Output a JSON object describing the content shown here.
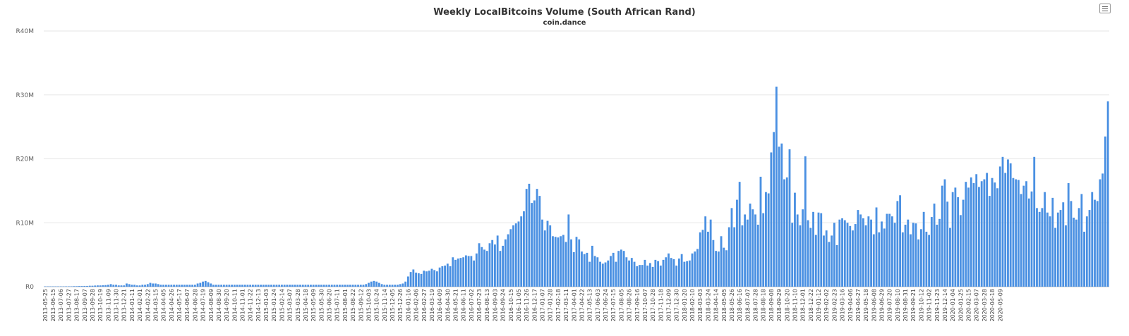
{
  "chart_data": {
    "type": "bar",
    "title": "Weekly LocalBitcoins Volume (South African Rand)",
    "subtitle": "coin.dance",
    "xlabel": "",
    "ylabel": "",
    "ylim": [
      0,
      40000000
    ],
    "y_ticks": [
      {
        "value": 0,
        "label": "R0"
      },
      {
        "value": 10000000,
        "label": "R10M"
      },
      {
        "value": 20000000,
        "label": "R20M"
      },
      {
        "value": 30000000,
        "label": "R30M"
      },
      {
        "value": 40000000,
        "label": "R40M"
      }
    ],
    "x_tick_labels": [
      "2013-05-25",
      "2013-06-15",
      "2013-07-06",
      "2013-07-27",
      "2013-08-17",
      "2013-09-07",
      "2013-09-28",
      "2013-10-19",
      "2013-11-09",
      "2013-11-30",
      "2013-12-21",
      "2014-01-11",
      "2014-02-01",
      "2014-02-22",
      "2014-03-15",
      "2014-04-05",
      "2014-04-26",
      "2014-05-17",
      "2014-06-07",
      "2014-06-28",
      "2014-07-19",
      "2014-08-09",
      "2014-08-30",
      "2014-09-20",
      "2014-10-11",
      "2014-11-01",
      "2014-11-22",
      "2014-12-13",
      "2015-01-03",
      "2015-01-24",
      "2015-02-14",
      "2015-03-07",
      "2015-03-28",
      "2015-04-18",
      "2015-05-09",
      "2015-05-30",
      "2015-06-20",
      "2015-07-11",
      "2015-08-01",
      "2015-08-22",
      "2015-09-12",
      "2015-10-03",
      "2015-10-24",
      "2015-11-14",
      "2015-12-05",
      "2015-12-26",
      "2016-01-16",
      "2016-02-06",
      "2016-02-27",
      "2016-03-19",
      "2016-04-09",
      "2016-04-30",
      "2016-05-21",
      "2016-06-11",
      "2016-07-02",
      "2016-07-23",
      "2016-08-13",
      "2016-09-03",
      "2016-09-24",
      "2016-10-15",
      "2016-11-05",
      "2016-11-26",
      "2016-12-17",
      "2017-01-07",
      "2017-01-28",
      "2017-02-18",
      "2017-03-11",
      "2017-04-01",
      "2017-04-22",
      "2017-05-13",
      "2017-06-03",
      "2017-06-24",
      "2017-07-15",
      "2017-08-05",
      "2017-08-26",
      "2017-09-16",
      "2017-10-07",
      "2017-10-28",
      "2017-11-18",
      "2017-12-09",
      "2017-12-30",
      "2018-01-20",
      "2018-02-10",
      "2018-03-03",
      "2018-03-24",
      "2018-04-14",
      "2018-05-05",
      "2018-05-26",
      "2018-06-16",
      "2018-07-07",
      "2018-07-28",
      "2018-08-18",
      "2018-09-08",
      "2018-09-29",
      "2018-10-20",
      "2018-11-10",
      "2018-12-01",
      "2018-12-22",
      "2019-01-12",
      "2019-02-02",
      "2019-02-23",
      "2019-03-16",
      "2019-04-06",
      "2019-04-27",
      "2019-05-18",
      "2019-06-08",
      "2019-06-29",
      "2019-07-20",
      "2019-08-10",
      "2019-08-31",
      "2019-09-21",
      "2019-10-12",
      "2019-11-02",
      "2019-11-23",
      "2019-12-14",
      "2020-01-04",
      "2020-01-25",
      "2020-02-15",
      "2020-03-07",
      "2020-03-28",
      "2020-04-18",
      "2020-05-09"
    ],
    "x_tick_every": 3,
    "bar_color": "#4a90e2",
    "values_millions": [
      0.05,
      0.05,
      0.05,
      0.05,
      0.05,
      0.05,
      0.05,
      0.05,
      0.06,
      0.06,
      0.06,
      0.08,
      0.08,
      0.1,
      0.1,
      0.12,
      0.12,
      0.15,
      0.15,
      0.18,
      0.2,
      0.2,
      0.22,
      0.25,
      0.3,
      0.4,
      0.3,
      0.3,
      0.2,
      0.2,
      0.2,
      0.5,
      0.4,
      0.3,
      0.3,
      0.2,
      0.2,
      0.3,
      0.3,
      0.4,
      0.6,
      0.5,
      0.5,
      0.4,
      0.3,
      0.3,
      0.3,
      0.3,
      0.3,
      0.3,
      0.3,
      0.3,
      0.3,
      0.3,
      0.3,
      0.3,
      0.3,
      0.3,
      0.5,
      0.6,
      0.8,
      0.9,
      0.7,
      0.5,
      0.3,
      0.3,
      0.3,
      0.3,
      0.3,
      0.3,
      0.3,
      0.3,
      0.3,
      0.3,
      0.3,
      0.3,
      0.3,
      0.3,
      0.3,
      0.3,
      0.3,
      0.3,
      0.3,
      0.3,
      0.3,
      0.3,
      0.3,
      0.3,
      0.3,
      0.3,
      0.3,
      0.3,
      0.3,
      0.3,
      0.3,
      0.3,
      0.3,
      0.3,
      0.3,
      0.3,
      0.3,
      0.3,
      0.3,
      0.3,
      0.3,
      0.3,
      0.3,
      0.3,
      0.3,
      0.3,
      0.3,
      0.3,
      0.3,
      0.3,
      0.3,
      0.3,
      0.3,
      0.3,
      0.3,
      0.3,
      0.3,
      0.3,
      0.4,
      0.6,
      0.8,
      0.9,
      0.8,
      0.6,
      0.4,
      0.3,
      0.3,
      0.3,
      0.3,
      0.3,
      0.3,
      0.4,
      0.5,
      0.8,
      1.6,
      2.3,
      2.7,
      2.2,
      2.1,
      2.0,
      2.5,
      2.4,
      2.5,
      2.8,
      2.6,
      2.4,
      3.0,
      3.2,
      3.3,
      3.6,
      3.2,
      4.6,
      4.2,
      4.4,
      4.5,
      4.6,
      4.9,
      4.8,
      4.8,
      4.1,
      5.2,
      6.8,
      6.2,
      5.8,
      5.6,
      6.8,
      7.3,
      6.6,
      8.0,
      5.6,
      6.4,
      7.4,
      8.2,
      9.0,
      9.6,
      9.9,
      10.2,
      11.0,
      11.8,
      15.3,
      16.1,
      13.1,
      13.5,
      15.3,
      14.2,
      10.5,
      8.8,
      10.3,
      9.6,
      7.9,
      7.8,
      7.7,
      7.9,
      8.1,
      7.0,
      11.3,
      7.4,
      5.4,
      7.8,
      7.4,
      5.5,
      5.1,
      5.3,
      3.9,
      6.4,
      4.8,
      4.6,
      3.9,
      3.6,
      3.8,
      4.1,
      4.8,
      5.3,
      3.9,
      5.6,
      5.8,
      5.6,
      4.6,
      4.1,
      4.5,
      3.9,
      3.2,
      3.4,
      3.4,
      4.2,
      3.3,
      3.7,
      3.1,
      4.2,
      4.0,
      3.3,
      4.2,
      4.6,
      5.2,
      4.5,
      4.3,
      3.3,
      4.4,
      5.1,
      3.9,
      4.0,
      4.1,
      5.2,
      5.5,
      5.9,
      8.5,
      8.9,
      11.0,
      8.6,
      10.5,
      7.3,
      5.6,
      5.5,
      7.9,
      6.1,
      5.7,
      9.3,
      12.3,
      9.3,
      13.6,
      16.4,
      9.6,
      11.3,
      10.5,
      13.0,
      12.1,
      11.3,
      9.7,
      17.2,
      11.5,
      14.8,
      14.6,
      21.0,
      24.2,
      31.3,
      21.9,
      22.4,
      16.8,
      17.1,
      21.5,
      10.0,
      14.7,
      11.3,
      9.6,
      12.1,
      20.4,
      10.4,
      9.2,
      11.7,
      8.1,
      11.6,
      11.5,
      8.0,
      8.8,
      7.0,
      8.0,
      10.0,
      6.5,
      10.5,
      10.7,
      10.4,
      10.0,
      9.5,
      8.8,
      9.8,
      12.0,
      11.3,
      10.7,
      9.6,
      11.0,
      10.5,
      8.2,
      12.4,
      8.5,
      10.2,
      9.1,
      11.4,
      11.4,
      11.0,
      10.0,
      13.4,
      14.3,
      8.5,
      9.7,
      10.5,
      8.2,
      10.0,
      9.9,
      7.4,
      9.0,
      11.7,
      8.6,
      8.1,
      10.9,
      13.0,
      9.7,
      10.6,
      15.8,
      16.8,
      13.3,
      9.2,
      14.8,
      15.5,
      14.0,
      11.2,
      13.6,
      16.4,
      15.5,
      17.1,
      16.2,
      17.6,
      15.6,
      16.5,
      16.8,
      17.8,
      14.2,
      17.0,
      16.3,
      15.4,
      18.8,
      20.3,
      17.8,
      19.9,
      19.3,
      17.0,
      16.8,
      16.7,
      14.5,
      15.8,
      16.5,
      13.8,
      14.9,
      20.3,
      12.3,
      11.7,
      12.3,
      14.8,
      11.6,
      11.0,
      13.9,
      9.2,
      11.6,
      12.0,
      13.2,
      9.6,
      16.2,
      13.4,
      10.8,
      10.5,
      12.3,
      14.5,
      8.6,
      11.0,
      12.0,
      14.8,
      13.6,
      13.4,
      16.8,
      17.7,
      23.5,
      29.0
    ]
  },
  "ui": {
    "menu_icon": "hamburger-menu-icon"
  }
}
